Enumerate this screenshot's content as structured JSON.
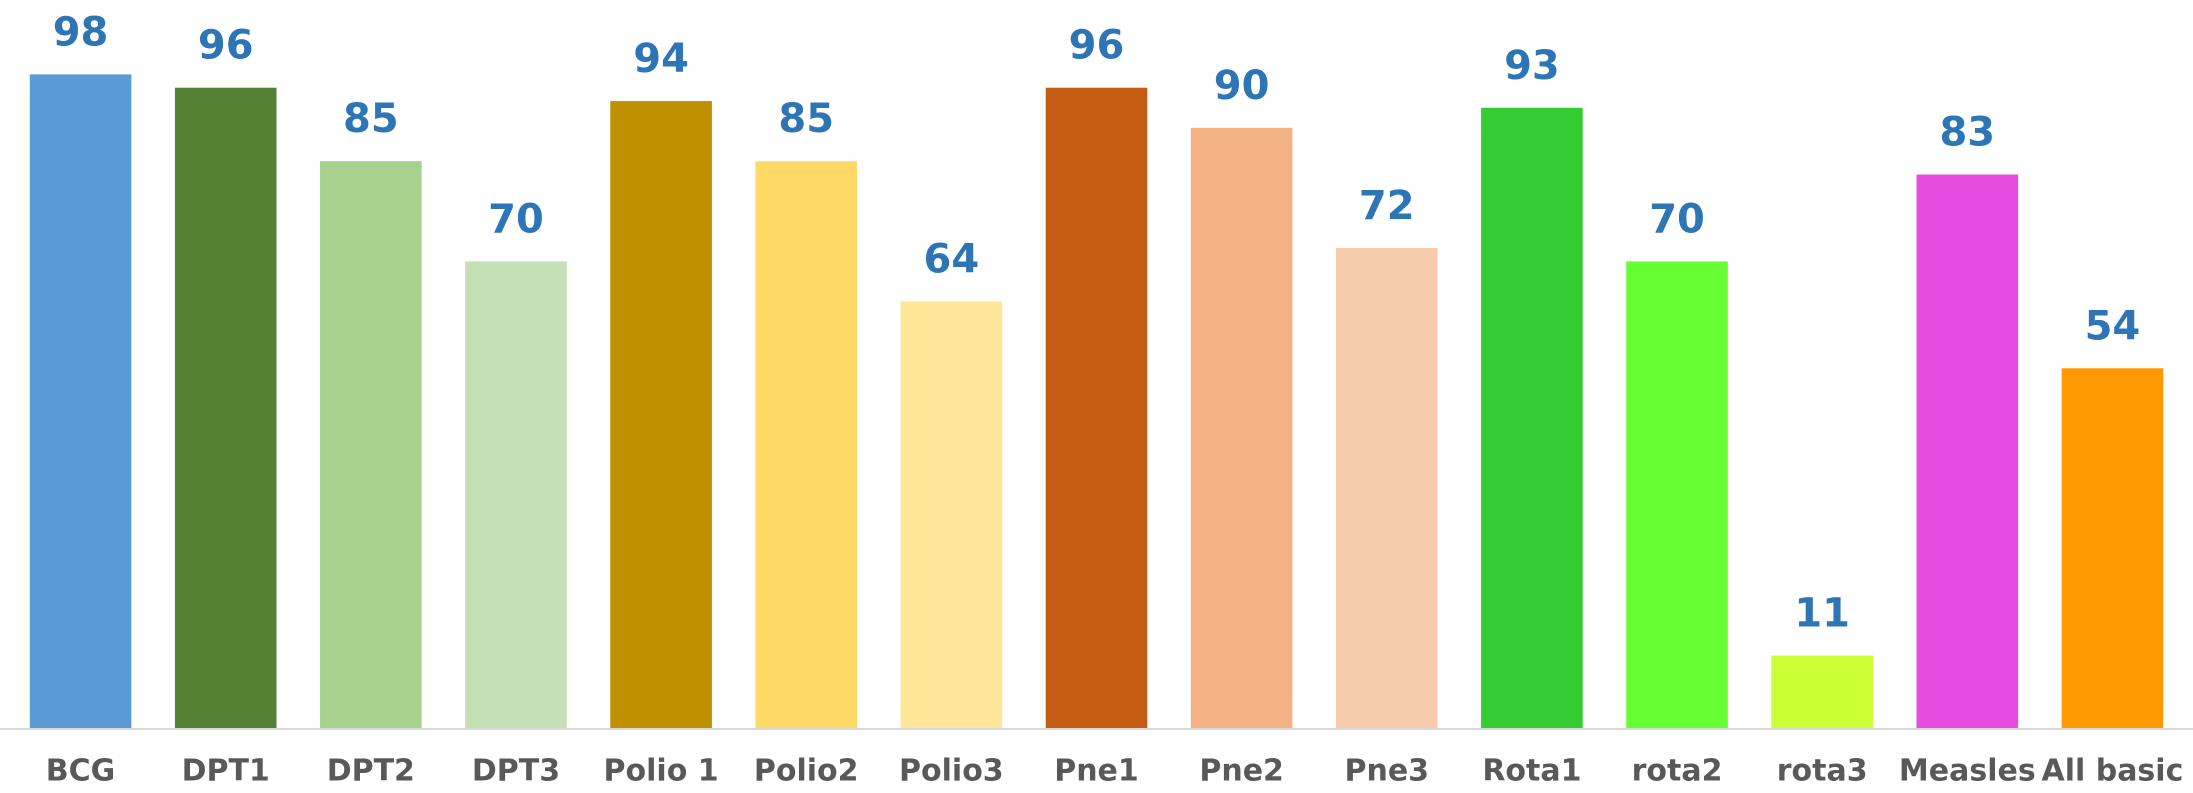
{
  "chart_data": {
    "type": "bar",
    "categories": [
      "BCG",
      "DPT1",
      "DPT2",
      "DPT3",
      "Polio 1",
      "Polio2",
      "Polio3",
      "Pne1",
      "Pne2",
      "Pne3",
      "Rota1",
      "rota2",
      "rota3",
      "Measles",
      "All basic"
    ],
    "values": [
      98,
      96,
      85,
      70,
      94,
      85,
      64,
      96,
      90,
      72,
      93,
      70,
      11,
      83,
      54
    ],
    "colors": [
      "#5b9bd5",
      "#548235",
      "#a9d18e",
      "#c5e0b4",
      "#bf9000",
      "#ffd966",
      "#ffe699",
      "#c55a11",
      "#f4b183",
      "#f8cbad",
      "#33cc33",
      "#66ff33",
      "#ccff33",
      "#e64ce0",
      "#ff9900"
    ],
    "ylim": [
      0,
      100
    ]
  }
}
